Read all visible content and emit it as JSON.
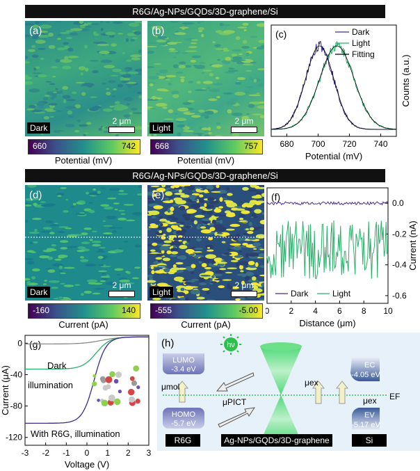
{
  "section_top": {
    "title": "R6G/Ag-NPs/GQDs/3D-graphene/Si"
  },
  "section_mid": {
    "title": "R6G/Ag-NPs/GQDs/3D-graphene/Si"
  },
  "scale_bar": "2 μm",
  "panel_a": {
    "label": "(a)",
    "tag": "Dark",
    "cbar_min": "660",
    "cbar_max": "742",
    "cbar_caption": "Potential (mV)"
  },
  "panel_b": {
    "label": "(b)",
    "tag": "Light",
    "cbar_min": "668",
    "cbar_max": "757",
    "cbar_caption": "Potential (mV)"
  },
  "panel_d": {
    "label": "(d)",
    "tag": "Dark",
    "cbar_min": "-160",
    "cbar_max": "140",
    "cbar_caption": "Current (pA)"
  },
  "panel_e": {
    "label": "(e)",
    "tag": "Light",
    "cbar_min": "-555",
    "cbar_max": "-5.00",
    "cbar_caption": "Current (pA)"
  },
  "panel_c": {
    "label": "(c)",
    "chart_data": {
      "type": "line",
      "xlabel": "Potential (mV)",
      "ylabel": "Counts (a.u.)",
      "xlim": [
        670,
        750
      ],
      "xticks": [
        "680",
        "700",
        "720",
        "740"
      ],
      "legend": [
        "Dark",
        "Light",
        "Fitting"
      ],
      "series": [
        {
          "name": "Dark",
          "center": 701,
          "sigma": 9,
          "color": "#3b2a8a"
        },
        {
          "name": "Light",
          "center": 712,
          "sigma": 11,
          "color": "#27b06a"
        },
        {
          "name": "Fitting",
          "color": "#000000"
        }
      ]
    }
  },
  "panel_f": {
    "label": "(f)",
    "chart_data": {
      "type": "line",
      "xlabel": "Distance (μm)",
      "ylabel": "Current (nA)",
      "xlim": [
        0,
        10
      ],
      "ylim": [
        -0.65,
        0.1
      ],
      "xticks": [
        "0",
        "2",
        "4",
        "6",
        "8",
        "10"
      ],
      "yticks": [
        "0.0",
        "-0.2",
        "-0.4",
        "-0.6"
      ],
      "legend": [
        "Dark",
        "Light"
      ],
      "series": [
        {
          "name": "Dark",
          "mean": 0.0,
          "color": "#4a2a8a"
        },
        {
          "name": "Light",
          "mean": -0.3,
          "color": "#27b06a"
        }
      ]
    }
  },
  "panel_g": {
    "label": "(g)",
    "chart_data": {
      "type": "line",
      "xlabel": "Voltage (V)",
      "ylabel": "Current (μA)",
      "xlim": [
        -3,
        3
      ],
      "ylim": [
        -130,
        10
      ],
      "xticks": [
        "-3",
        "-2",
        "-1",
        "0",
        "1",
        "2",
        "3"
      ],
      "yticks": [
        "0",
        "-40",
        "-80",
        "-120"
      ],
      "annotations": [
        "Dark",
        "illumination",
        "With R6G, illumination"
      ],
      "series": [
        {
          "name": "Dark",
          "color": "#888888"
        },
        {
          "name": "illumination",
          "color": "#27b06a"
        },
        {
          "name": "With R6G, illumination",
          "color": "#3b2a8a"
        }
      ]
    }
  },
  "panel_h": {
    "label": "(h)",
    "hv": "hν",
    "lumo_name": "LUMO",
    "lumo_val": "-3.4 eV",
    "homo_name": "HOMO",
    "homo_val": "-5.7 eV",
    "mu_mol": "μmol",
    "mu_picts": "μPICT",
    "mu_ex": "μex",
    "mu_ex2": "μex",
    "ef": "EF",
    "ec_name": "EC",
    "ec_val": "-4.05 eV",
    "ev_name": "EV",
    "ev_val": "-5.17 eV",
    "box_r6g": "R6G",
    "box_mid": "Ag-NPs/GQDs/3D-graphene",
    "box_si": "Si"
  }
}
